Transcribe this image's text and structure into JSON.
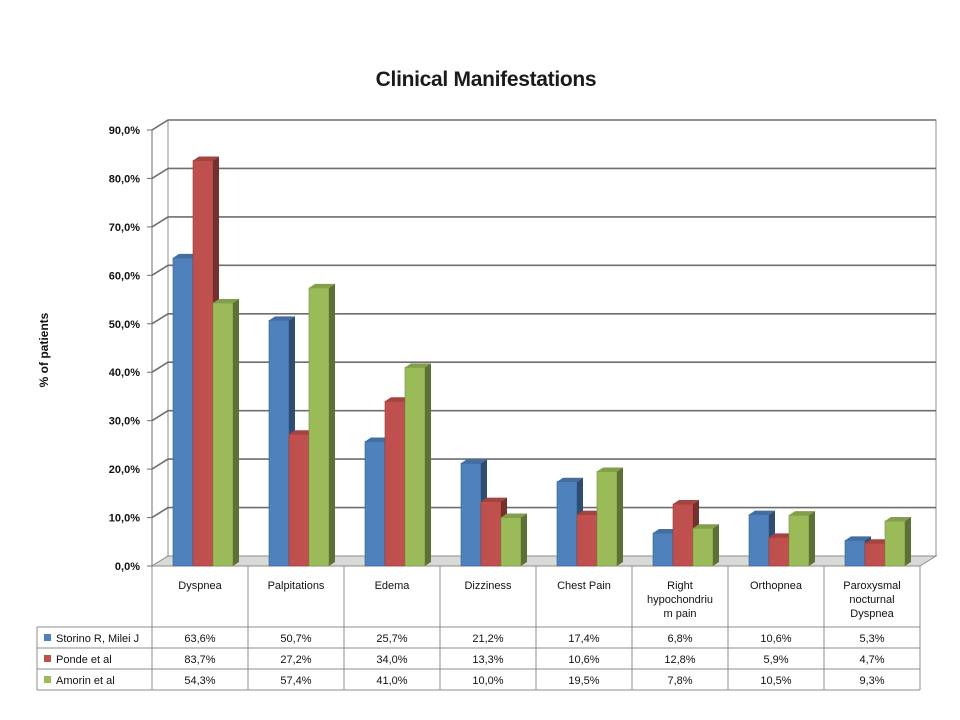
{
  "chart_data": {
    "type": "bar",
    "title": "Clinical Manifestations",
    "ylabel": "% of patients",
    "xlabel": "",
    "ylim": [
      0,
      90
    ],
    "yticks": [
      "0,0%",
      "10,0%",
      "20,0%",
      "30,0%",
      "40,0%",
      "50,0%",
      "60,0%",
      "70,0%",
      "80,0%",
      "90,0%"
    ],
    "grid": true,
    "legend": "data-table",
    "categories": [
      [
        "Dyspnea"
      ],
      [
        "Palpitations"
      ],
      [
        "Edema"
      ],
      [
        "Dizziness"
      ],
      [
        "Chest Pain"
      ],
      [
        "Right",
        "hypochondriu",
        "m pain"
      ],
      [
        "Orthopnea"
      ],
      [
        "Paroxysmal",
        "nocturnal",
        "Dyspnea"
      ]
    ],
    "series": [
      {
        "name": "Storino R, Milei J",
        "color": "#4F81BD",
        "values": [
          63.6,
          50.7,
          25.7,
          21.2,
          17.4,
          6.8,
          10.6,
          5.3
        ],
        "labels": [
          "63,6%",
          "50,7%",
          "25,7%",
          "21,2%",
          "17,4%",
          "6,8%",
          "10,6%",
          "5,3%"
        ]
      },
      {
        "name": "Ponde et al",
        "color": "#C0504D",
        "values": [
          83.7,
          27.2,
          34.0,
          13.3,
          10.6,
          12.8,
          5.9,
          4.7
        ],
        "labels": [
          "83,7%",
          "27,2%",
          "34,0%",
          "13,3%",
          "10,6%",
          "12,8%",
          "5,9%",
          "4,7%"
        ]
      },
      {
        "name": "Amorin et al",
        "color": "#9BBB59",
        "values": [
          54.3,
          57.4,
          41.0,
          10.0,
          19.5,
          7.8,
          10.5,
          9.3
        ],
        "labels": [
          "54,3%",
          "57,4%",
          "41,0%",
          "10,0%",
          "19,5%",
          "7,8%",
          "10,5%",
          "9,3%"
        ]
      }
    ]
  }
}
